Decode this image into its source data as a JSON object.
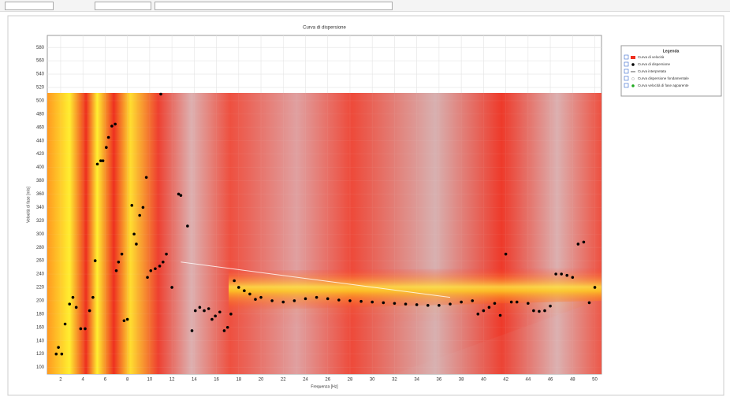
{
  "chart_data": {
    "type": "scatter",
    "title": "Curva di dispersione",
    "x_label": "Frequenza [Hz]",
    "y_label": "Velocità di fase [m/s]",
    "xlim": [
      0.8,
      50.6
    ],
    "ylim": [
      90,
      598
    ],
    "xticks": [
      2,
      4,
      6,
      8,
      10,
      12,
      14,
      16,
      18,
      20,
      22,
      24,
      26,
      28,
      30,
      32,
      34,
      36,
      38,
      40,
      42,
      44,
      46,
      48,
      50
    ],
    "yticks": [
      100,
      120,
      140,
      160,
      180,
      200,
      220,
      240,
      260,
      280,
      300,
      320,
      340,
      360,
      380,
      400,
      420,
      440,
      460,
      480,
      500,
      520,
      540,
      560,
      580
    ],
    "grid": true,
    "legend_title": "Legenda",
    "legend_position": "outside-right",
    "series": [
      {
        "name": "Curva di dispersione",
        "color": "#000000",
        "x": [
          1.6,
          1.8,
          2.1,
          2.4,
          2.8,
          3.1,
          3.4,
          3.8,
          4.2,
          4.6,
          4.9,
          5.1,
          5.3,
          5.6,
          5.8,
          6.1,
          6.3,
          6.6,
          6.9,
          7.0,
          7.2,
          7.5,
          7.7,
          8.0,
          8.4,
          8.6,
          8.8,
          9.1,
          9.4,
          9.7,
          9.8,
          10.1,
          10.5,
          10.9,
          11.0,
          11.2,
          11.5,
          12.0,
          12.6,
          12.8,
          13.4,
          13.8,
          14.1,
          14.5,
          14.9,
          15.3,
          15.6,
          15.9,
          16.3,
          16.7,
          17.0,
          17.3,
          17.6,
          18.0,
          18.5,
          19.0,
          19.5,
          20,
          21,
          22,
          23,
          24,
          25,
          26,
          27,
          28,
          29,
          30,
          31,
          32,
          33,
          34,
          35,
          36,
          37,
          38,
          39,
          39.5,
          40,
          40.5,
          41,
          41.5,
          42,
          42.5,
          43,
          44,
          44.5,
          45,
          45.5,
          46,
          46.5,
          47,
          47.5,
          48,
          48.5,
          49,
          49.5,
          50
        ],
        "values": [
          120,
          130,
          120,
          165,
          195,
          205,
          190,
          158,
          158,
          185,
          205,
          260,
          405,
          410,
          410,
          430,
          445,
          462,
          465,
          245,
          258,
          270,
          170,
          172,
          343,
          300,
          285,
          328,
          340,
          385,
          235,
          245,
          248,
          252,
          510,
          258,
          270,
          220,
          360,
          358,
          312,
          155,
          185,
          190,
          185,
          188,
          172,
          177,
          183,
          155,
          160,
          180,
          230,
          220,
          215,
          210,
          202,
          205,
          200,
          198,
          200,
          203,
          205,
          203,
          201,
          200,
          199,
          198,
          197,
          196,
          195,
          194,
          193,
          193,
          195,
          198,
          200,
          180,
          185,
          190,
          196,
          178,
          270,
          198,
          198,
          196,
          185,
          184,
          185,
          192,
          240,
          240,
          238,
          235,
          285,
          288,
          197,
          220
        ]
      },
      {
        "name": "Curva interpretata",
        "color": "#ffffff",
        "x": [
          12.8,
          37.0
        ],
        "values": [
          258,
          205
        ]
      }
    ],
    "legend_extra": [
      "Curva di velocità",
      "Curva dispersione fondamentale",
      "Curva velocità di fase apparente"
    ]
  }
}
